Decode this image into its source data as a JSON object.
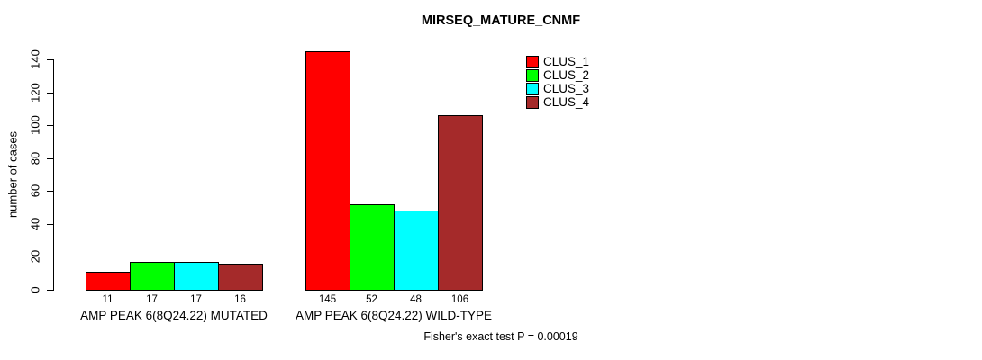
{
  "chart_data": {
    "type": "bar",
    "title": "MIRSEQ_MATURE_CNMF",
    "ylabel": "number of cases",
    "xlabel": "",
    "ylim": [
      0,
      140
    ],
    "yticks": [
      0,
      20,
      40,
      60,
      80,
      100,
      120,
      140
    ],
    "grid": false,
    "legend_position": "topright",
    "categories": [
      "AMP PEAK 6(8Q24.22) MUTATED",
      "AMP PEAK 6(8Q24.22) WILD-TYPE"
    ],
    "series": [
      {
        "name": "CLUS_1",
        "color": "#FF0000",
        "values": [
          11,
          145
        ]
      },
      {
        "name": "CLUS_2",
        "color": "#00FF00",
        "values": [
          17,
          52
        ]
      },
      {
        "name": "CLUS_3",
        "color": "#00FFFF",
        "values": [
          17,
          48
        ]
      },
      {
        "name": "CLUS_4",
        "color": "#A52A2A",
        "values": [
          16,
          106
        ]
      }
    ],
    "bar_value_labels": [
      [
        11,
        17,
        17,
        16
      ],
      [
        145,
        52,
        48,
        106
      ]
    ],
    "annotation": "Fisher's exact test P = 0.00019"
  },
  "colors": {
    "background": "#FFFFFF",
    "axis": "#000000",
    "text": "#000000"
  }
}
